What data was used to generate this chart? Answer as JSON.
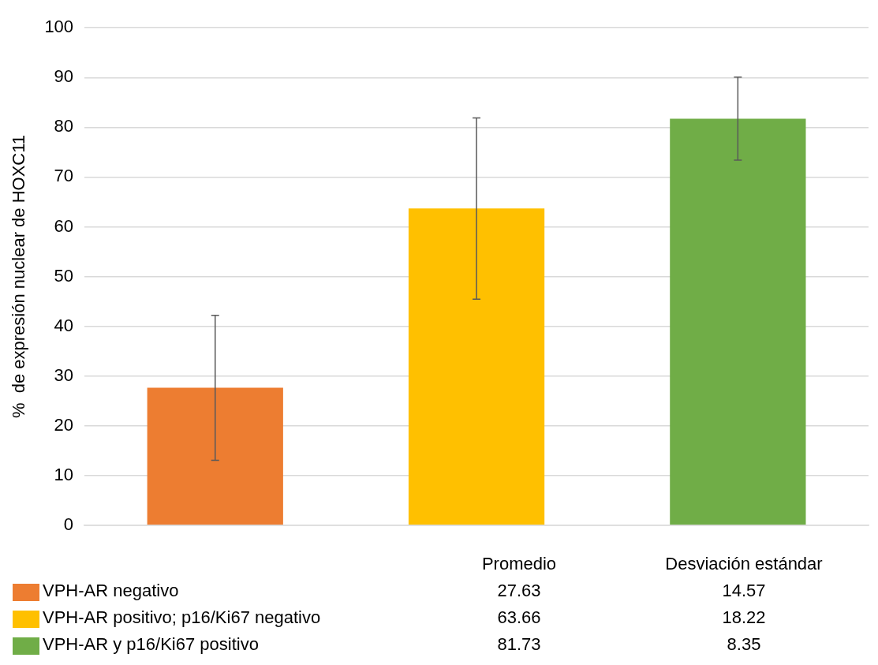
{
  "chart_data": {
    "type": "bar",
    "ylabel": "%  de expresión nuclear de HOXC11",
    "categories": [
      null,
      null,
      null
    ],
    "series": [
      {
        "name": "VPH-AR negativo",
        "color": "#ed7d31",
        "values": [
          27.63,
          null,
          null
        ],
        "errors": [
          14.57,
          null,
          null
        ]
      },
      {
        "name": "VPH-AR positivo; p16/Ki67 negativo",
        "color": "#ffc000",
        "values": [
          null,
          63.66,
          null
        ],
        "errors": [
          null,
          18.22,
          null
        ]
      },
      {
        "name": "VPH-AR y p16/Ki67 positivo",
        "color": "#70ad47",
        "values": [
          null,
          null,
          81.73
        ],
        "errors": [
          null,
          null,
          8.35
        ]
      }
    ],
    "ylim": [
      0,
      100
    ],
    "yticks": [
      0,
      10,
      20,
      30,
      40,
      50,
      60,
      70,
      80,
      90,
      100
    ],
    "grid": "y",
    "tick_labels": "y",
    "legend": "bottom",
    "annotations": [
      "Promedio",
      "Desviación estándar",
      "27.63",
      "14.57",
      "63.66",
      "18.22",
      "81.73",
      "8.35"
    ]
  }
}
